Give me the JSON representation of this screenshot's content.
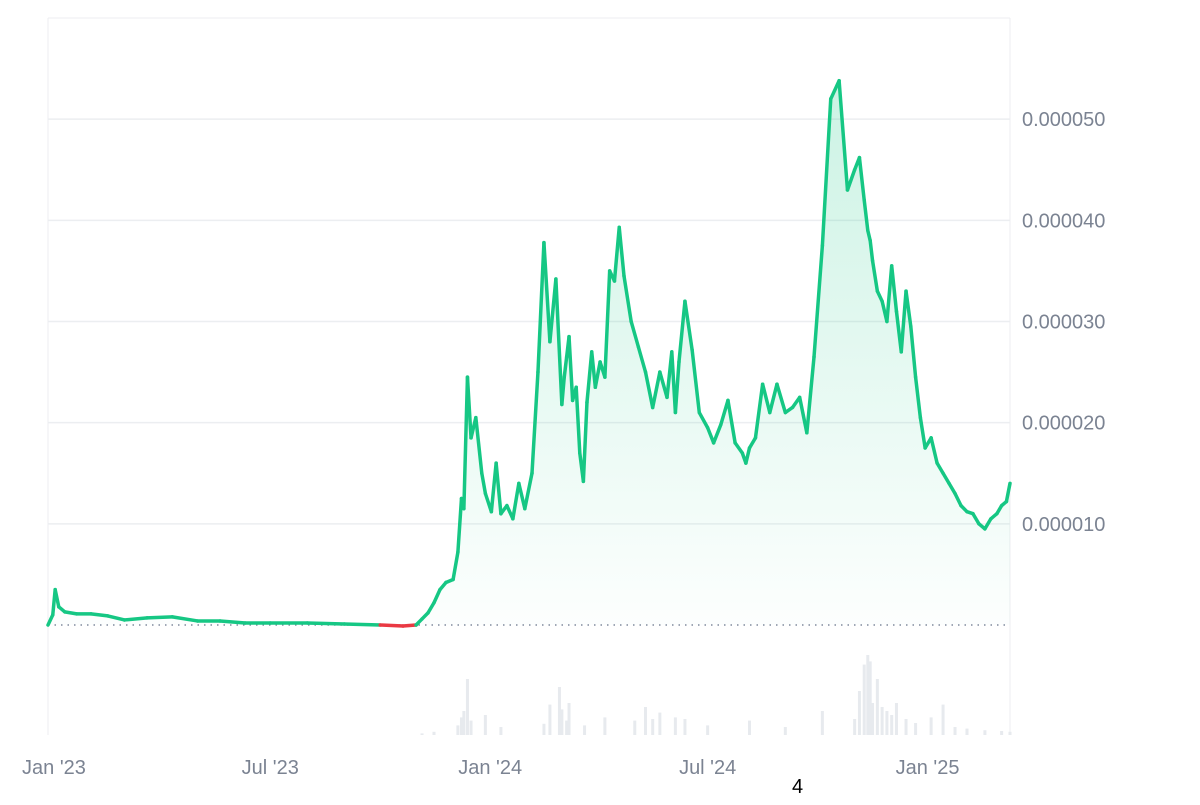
{
  "chart_data": {
    "type": "area",
    "title": "",
    "xlabel": "",
    "ylabel": "",
    "x_ticks": [
      "Jan '23",
      "Jul '23",
      "Jan '24",
      "Jul '24",
      "Jan '25"
    ],
    "y_ticks": [
      "0.000010",
      "0.000020",
      "0.000030",
      "0.000040",
      "0.000050"
    ],
    "y_tick_values": [
      1e-05,
      2e-05,
      3e-05,
      4e-05,
      5e-05
    ],
    "ylim": [
      0.0,
      6e-05
    ],
    "xlim": [
      "2022-12-27",
      "2025-03-11"
    ],
    "grid": true,
    "legend": "none",
    "colors": {
      "up_line": "#16c784",
      "down_line": "#ea3943",
      "fill_top": "#16c784",
      "grid": "#eceef1",
      "baseline_dots": "#808a9d",
      "volume": "#e7eaee"
    },
    "price_series": {
      "name": "",
      "x": [
        "2022-12-27",
        "2022-12-31",
        "2023-01-02",
        "2023-01-05",
        "2023-01-10",
        "2023-01-20",
        "2023-02-01",
        "2023-02-15",
        "2023-03-01",
        "2023-03-20",
        "2023-04-10",
        "2023-05-01",
        "2023-05-20",
        "2023-06-10",
        "2023-07-01",
        "2023-08-01",
        "2023-09-01",
        "2023-10-01",
        "2023-10-20",
        "2023-10-31",
        "2023-11-05",
        "2023-11-10",
        "2023-11-15",
        "2023-11-20",
        "2023-11-25",
        "2023-12-01",
        "2023-12-05",
        "2023-12-08",
        "2023-12-10",
        "2023-12-13",
        "2023-12-16",
        "2023-12-20",
        "2023-12-25",
        "2023-12-28",
        "2024-01-02",
        "2024-01-06",
        "2024-01-10",
        "2024-01-15",
        "2024-01-20",
        "2024-01-25",
        "2024-01-30",
        "2024-02-05",
        "2024-02-10",
        "2024-02-15",
        "2024-02-20",
        "2024-02-25",
        "2024-03-01",
        "2024-03-03",
        "2024-03-05",
        "2024-03-07",
        "2024-03-10",
        "2024-03-13",
        "2024-03-16",
        "2024-03-19",
        "2024-03-22",
        "2024-03-26",
        "2024-03-29",
        "2024-04-02",
        "2024-04-06",
        "2024-04-10",
        "2024-04-14",
        "2024-04-18",
        "2024-04-22",
        "2024-04-28",
        "2024-05-04",
        "2024-05-10",
        "2024-05-16",
        "2024-05-22",
        "2024-05-28",
        "2024-06-01",
        "2024-06-04",
        "2024-06-07",
        "2024-06-12",
        "2024-06-18",
        "2024-06-24",
        "2024-07-01",
        "2024-07-06",
        "2024-07-12",
        "2024-07-18",
        "2024-07-24",
        "2024-07-30",
        "2024-08-02",
        "2024-08-05",
        "2024-08-10",
        "2024-08-16",
        "2024-08-22",
        "2024-08-28",
        "2024-09-04",
        "2024-09-10",
        "2024-09-16",
        "2024-09-22",
        "2024-09-28",
        "2024-10-05",
        "2024-10-12",
        "2024-10-19",
        "2024-10-26",
        "2024-11-01",
        "2024-11-05",
        "2024-11-09",
        "2024-11-12",
        "2024-11-14",
        "2024-11-16",
        "2024-11-20",
        "2024-11-24",
        "2024-11-28",
        "2024-12-02",
        "2024-12-06",
        "2024-12-10",
        "2024-12-14",
        "2024-12-18",
        "2024-12-22",
        "2024-12-26",
        "2024-12-30",
        "2025-01-04",
        "2025-01-09",
        "2025-01-14",
        "2025-01-19",
        "2025-01-24",
        "2025-01-29",
        "2025-02-03",
        "2025-02-08",
        "2025-02-13",
        "2025-02-18",
        "2025-02-23",
        "2025-02-28",
        "2025-03-04",
        "2025-03-08",
        "2025-03-11"
      ],
      "y": [
        0.0,
        1e-06,
        3.5e-06,
        1.8e-06,
        1.3e-06,
        1.1e-06,
        1.1e-06,
        9e-07,
        5e-07,
        7e-07,
        8e-07,
        4e-07,
        4e-07,
        2e-07,
        2e-07,
        2e-07,
        1e-07,
        0.0,
        -1e-07,
        0.0,
        6e-07,
        1.2e-06,
        2.2e-06,
        3.5e-06,
        4.2e-06,
        4.5e-06,
        7.2e-06,
        1.25e-05,
        1.15e-05,
        2.45e-05,
        1.85e-05,
        2.05e-05,
        1.5e-05,
        1.3e-05,
        1.12e-05,
        1.6e-05,
        1.1e-05,
        1.18e-05,
        1.05e-05,
        1.4e-05,
        1.15e-05,
        1.5e-05,
        2.5e-05,
        3.78e-05,
        2.8e-05,
        3.42e-05,
        2.18e-05,
        2.45e-05,
        2.65e-05,
        2.85e-05,
        2.22e-05,
        2.35e-05,
        1.7e-05,
        1.42e-05,
        2.2e-05,
        2.7e-05,
        2.35e-05,
        2.6e-05,
        2.45e-05,
        3.5e-05,
        3.4e-05,
        3.93e-05,
        3.45e-05,
        3e-05,
        2.75e-05,
        2.5e-05,
        2.15e-05,
        2.5e-05,
        2.25e-05,
        2.7e-05,
        2.1e-05,
        2.6e-05,
        3.2e-05,
        2.72e-05,
        2.1e-05,
        1.95e-05,
        1.8e-05,
        1.98e-05,
        2.22e-05,
        1.8e-05,
        1.7e-05,
        1.6e-05,
        1.75e-05,
        1.85e-05,
        2.38e-05,
        2.1e-05,
        2.38e-05,
        2.1e-05,
        2.15e-05,
        2.25e-05,
        1.9e-05,
        2.65e-05,
        3.75e-05,
        5.2e-05,
        5.38e-05,
        4.3e-05,
        4.5e-05,
        4.62e-05,
        4.2e-05,
        3.9e-05,
        3.8e-05,
        3.6e-05,
        3.3e-05,
        3.2e-05,
        3e-05,
        3.55e-05,
        3.1e-05,
        2.7e-05,
        3.3e-05,
        2.95e-05,
        2.45e-05,
        2.05e-05,
        1.75e-05,
        1.85e-05,
        1.6e-05,
        1.5e-05,
        1.4e-05,
        1.3e-05,
        1.18e-05,
        1.12e-05,
        1.1e-05,
        1e-05,
        9.5e-06,
        1.05e-05,
        1.1e-05,
        1.18e-05,
        1.22e-05,
        1.4e-05
      ]
    },
    "volume_series": {
      "name": "",
      "x": [
        "2023-11-05",
        "2023-11-15",
        "2023-12-05",
        "2023-12-08",
        "2023-12-10",
        "2023-12-13",
        "2023-12-16",
        "2023-12-28",
        "2024-01-10",
        "2024-02-15",
        "2024-02-20",
        "2024-02-28",
        "2024-03-01",
        "2024-03-05",
        "2024-03-07",
        "2024-03-20",
        "2024-04-06",
        "2024-05-01",
        "2024-05-10",
        "2024-05-16",
        "2024-05-22",
        "2024-06-04",
        "2024-06-12",
        "2024-07-01",
        "2024-08-05",
        "2024-09-04",
        "2024-10-05",
        "2024-11-01",
        "2024-11-05",
        "2024-11-09",
        "2024-11-12",
        "2024-11-14",
        "2024-11-16",
        "2024-11-20",
        "2024-11-24",
        "2024-11-28",
        "2024-12-02",
        "2024-12-06",
        "2024-12-14",
        "2024-12-22",
        "2025-01-04",
        "2025-01-14",
        "2025-01-24",
        "2025-02-03",
        "2025-02-18",
        "2025-03-04",
        "2025-03-11"
      ],
      "y": [
        2,
        4,
        12,
        22,
        30,
        70,
        18,
        25,
        10,
        14,
        38,
        60,
        32,
        18,
        40,
        12,
        22,
        18,
        35,
        20,
        28,
        22,
        20,
        12,
        18,
        10,
        30,
        20,
        55,
        88,
        100,
        92,
        40,
        70,
        35,
        30,
        25,
        40,
        20,
        15,
        22,
        38,
        10,
        8,
        6,
        5,
        4
      ]
    }
  },
  "footer": {
    "label": "4"
  }
}
